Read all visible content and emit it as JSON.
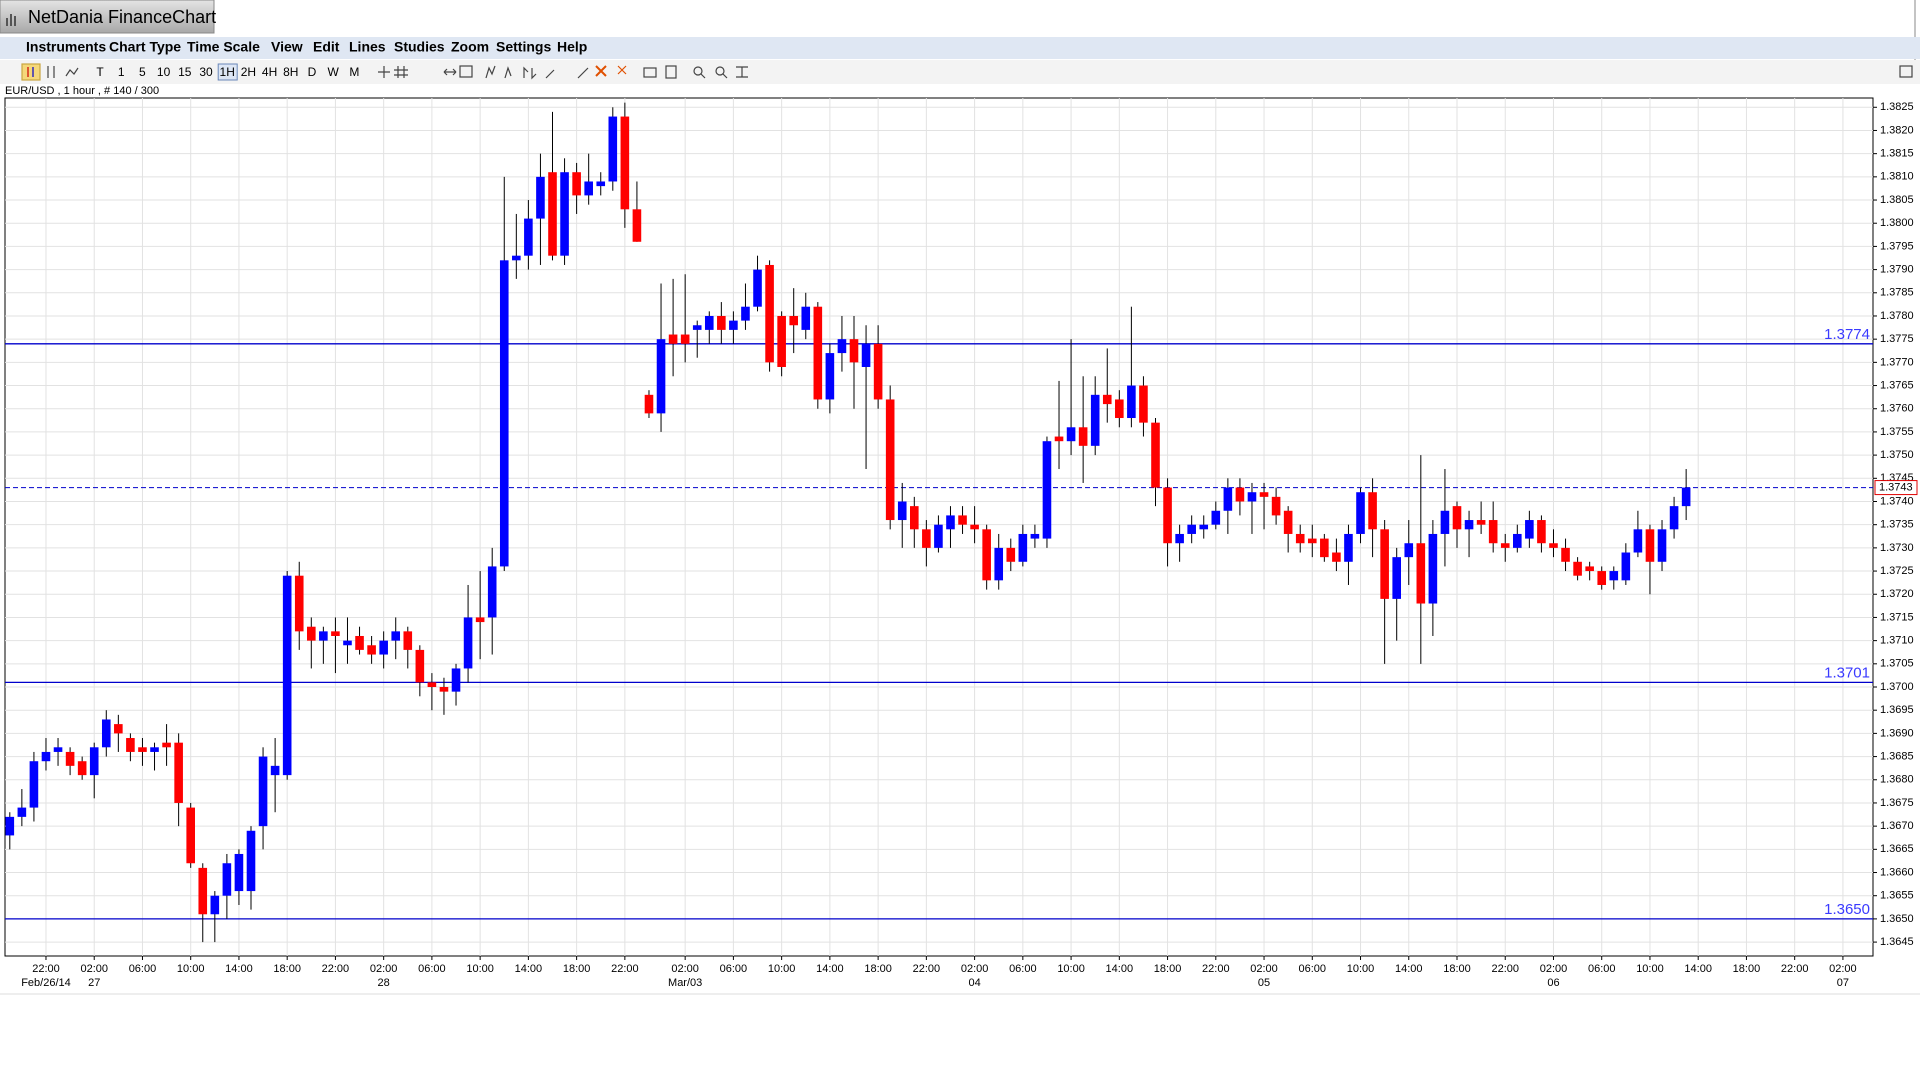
{
  "window": {
    "title": "NetDania FinanceChart"
  },
  "menu": {
    "items": [
      "Instruments",
      "Chart Type",
      "Time Scale",
      "View",
      "Edit",
      "Lines",
      "Studies",
      "Zoom",
      "Settings",
      "Help"
    ]
  },
  "toolbar": {
    "buttons": [
      "T",
      "1",
      "5",
      "10",
      "15",
      "30",
      "1H",
      "2H",
      "4H",
      "8H",
      "D",
      "W",
      "M"
    ]
  },
  "chart_data": {
    "type": "candlestick",
    "label": "EUR/USD , 1 hour , # 140 / 300",
    "up_color": "#0000ff",
    "down_color": "#ff0000",
    "wick_color": "#000000",
    "line_color": "#0000cc",
    "grid": true,
    "ylim": [
      1.3642,
      1.3827
    ],
    "yticks": [
      1.3645,
      {
        "value": 1.365,
        "label": "1.3650"
      },
      1.3655,
      {
        "value": 1.366,
        "label": "1.3660"
      },
      1.3665,
      {
        "value": 1.367,
        "label": "1.3670"
      },
      1.3675,
      {
        "value": 1.368,
        "label": "1.3680"
      },
      1.3685,
      {
        "value": 1.369,
        "label": "1.3690"
      },
      1.3695,
      {
        "value": 1.37,
        "label": "1.3700"
      },
      1.3705,
      {
        "value": 1.371,
        "label": "1.3710"
      },
      1.3715,
      {
        "value": 1.372,
        "label": "1.3720"
      },
      1.3725,
      {
        "value": 1.373,
        "label": "1.3730"
      },
      1.3735,
      {
        "value": 1.374,
        "label": "1.3740"
      },
      1.3745,
      {
        "value": 1.375,
        "label": "1.3750"
      },
      1.3755,
      {
        "value": 1.376,
        "label": "1.3760"
      },
      1.3765,
      {
        "value": 1.377,
        "label": "1.3770"
      },
      1.3775,
      {
        "value": 1.378,
        "label": "1.3780"
      },
      1.3785,
      {
        "value": 1.379,
        "label": "1.3790"
      },
      1.3795,
      {
        "value": 1.38,
        "label": "1.3800"
      },
      1.3805,
      {
        "value": 1.381,
        "label": "1.3810"
      },
      1.3815,
      {
        "value": 1.382,
        "label": "1.3820"
      },
      1.3825
    ],
    "xticks": [
      {
        "value": 3,
        "label": "22:00",
        "date": "Feb/26/14"
      },
      {
        "value": 7,
        "label": "02:00",
        "date": "27"
      },
      {
        "value": 11,
        "label": "06:00"
      },
      {
        "value": 15,
        "label": "10:00"
      },
      {
        "value": 19,
        "label": "14:00"
      },
      {
        "value": 23,
        "label": "18:00"
      },
      {
        "value": 27,
        "label": "22:00"
      },
      {
        "value": 31,
        "label": "02:00",
        "date": "28"
      },
      {
        "value": 35,
        "label": "06:00"
      },
      {
        "value": 39,
        "label": "10:00"
      },
      {
        "value": 43,
        "label": "14:00"
      },
      {
        "value": 47,
        "label": "18:00"
      },
      {
        "value": 51,
        "label": "22:00"
      },
      {
        "value": 56,
        "label": "02:00",
        "date": "Mar/03"
      },
      {
        "value": 60,
        "label": "06:00"
      },
      {
        "value": 64,
        "label": "10:00"
      },
      {
        "value": 68,
        "label": "14:00"
      },
      {
        "value": 72,
        "label": "18:00"
      },
      {
        "value": 76,
        "label": "22:00"
      },
      {
        "value": 80,
        "label": "02:00",
        "date": "04"
      },
      {
        "value": 84,
        "label": "06:00"
      },
      {
        "value": 88,
        "label": "10:00"
      },
      {
        "value": 92,
        "label": "14:00"
      },
      {
        "value": 96,
        "label": "18:00"
      },
      {
        "value": 100,
        "label": "22:00"
      },
      {
        "value": 104,
        "label": "02:00",
        "date": "05"
      },
      {
        "value": 108,
        "label": "06:00"
      },
      {
        "value": 112,
        "label": "10:00"
      },
      {
        "value": 116,
        "label": "14:00"
      },
      {
        "value": 120,
        "label": "18:00"
      },
      {
        "value": 124,
        "label": "22:00"
      },
      {
        "value": 128,
        "label": "02:00",
        "date": "06"
      },
      {
        "value": 132,
        "label": "06:00"
      },
      {
        "value": 136,
        "label": "10:00"
      },
      {
        "value": 140,
        "label": "14:00"
      },
      {
        "value": 144,
        "label": "18:00"
      },
      {
        "value": 148,
        "label": "22:00"
      },
      {
        "value": 152,
        "label": "02:00",
        "date": "07"
      }
    ],
    "hlines": [
      1.3774,
      1.3701,
      {
        "value": 1.365,
        "label": "1.3650"
      }
    ],
    "last": 1.3743,
    "open": [
      1.3668,
      1.3672,
      1.3674,
      1.3684,
      1.3686,
      1.3686,
      1.3684,
      1.3681,
      1.3687,
      1.3692,
      1.3689,
      1.3687,
      1.3686,
      1.3688,
      1.3688,
      1.3674,
      1.3661,
      1.3651,
      1.3655,
      1.3656,
      1.3656,
      1.367,
      1.3681,
      1.3681,
      1.3724,
      1.3713,
      1.371,
      1.3712,
      1.3709,
      1.3711,
      1.3709,
      1.3707,
      1.371,
      1.3712,
      1.3708,
      1.3701,
      1.37,
      1.3699,
      1.3704,
      1.3715,
      1.3715,
      1.3726,
      1.3792,
      1.3793,
      1.3801,
      1.3811,
      1.3793,
      1.3811,
      1.3806,
      1.3808,
      1.3809,
      1.3823,
      1.3803,
      1.3763,
      1.3759,
      1.3776,
      1.3776,
      1.3777,
      1.3777,
      1.378,
      1.3777,
      1.3779,
      1.3782,
      1.3791,
      1.378,
      1.378,
      1.3777,
      1.3782,
      1.3762,
      1.3772,
      1.3775,
      1.3769,
      1.3774,
      1.3762,
      1.3736,
      1.3739,
      1.3734,
      1.373,
      1.3734,
      1.3737,
      1.3735,
      1.3734,
      1.3723,
      1.373,
      1.3727,
      1.3732,
      1.3732,
      1.3754,
      1.3753,
      1.3756,
      1.3752,
      1.3763,
      1.3762,
      1.3758,
      1.3765,
      1.3757,
      1.3743,
      1.3731,
      1.3733,
      1.3734,
      1.3735,
      1.3738,
      1.3743,
      1.374,
      1.3742,
      1.3741,
      1.3738,
      1.3733,
      1.3732,
      1.3732,
      1.3729,
      1.3727,
      1.3733,
      1.3742,
      1.3734,
      1.3719,
      1.3728,
      1.3731,
      1.3718,
      1.3733,
      1.3739,
      1.3734,
      1.3736,
      1.3736,
      1.3731,
      1.373,
      1.3732,
      1.3736,
      1.3731,
      1.373,
      1.3727,
      1.3726,
      1.3725,
      1.3723,
      1.3723,
      1.3729,
      1.3734,
      1.3727,
      1.3734,
      1.3739
    ],
    "high": [
      1.3673,
      1.3678,
      1.3686,
      1.3689,
      1.3689,
      1.3687,
      1.3685,
      1.3688,
      1.3695,
      1.3694,
      1.369,
      1.3689,
      1.3688,
      1.3692,
      1.369,
      1.3675,
      1.3662,
      1.3656,
      1.3664,
      1.3665,
      1.367,
      1.3687,
      1.3689,
      1.3725,
      1.3727,
      1.3715,
      1.3713,
      1.3715,
      1.3715,
      1.3713,
      1.3711,
      1.3712,
      1.3715,
      1.3713,
      1.3709,
      1.3703,
      1.3702,
      1.3705,
      1.3722,
      1.3725,
      1.373,
      1.381,
      1.3802,
      1.3805,
      1.3815,
      1.3824,
      1.3814,
      1.3813,
      1.3815,
      1.3811,
      1.3825,
      1.3826,
      1.3809,
      1.3764,
      1.3787,
      1.3788,
      1.3789,
      1.3779,
      1.3781,
      1.3783,
      1.3781,
      1.3787,
      1.3793,
      1.3792,
      1.3781,
      1.3786,
      1.3785,
      1.3783,
      1.3774,
      1.378,
      1.378,
      1.3778,
      1.3778,
      1.3765,
      1.3744,
      1.3741,
      1.3736,
      1.3737,
      1.3739,
      1.3739,
      1.3739,
      1.3735,
      1.3733,
      1.3732,
      1.3735,
      1.3735,
      1.3754,
      1.3766,
      1.3775,
      1.3767,
      1.3767,
      1.3773,
      1.3764,
      1.3782,
      1.3767,
      1.3758,
      1.3745,
      1.3735,
      1.3737,
      1.3737,
      1.374,
      1.3745,
      1.3745,
      1.3744,
      1.3744,
      1.3743,
      1.3739,
      1.3735,
      1.3735,
      1.3733,
      1.3732,
      1.3735,
      1.3743,
      1.3745,
      1.3736,
      1.373,
      1.3736,
      1.375,
      1.3736,
      1.3747,
      1.374,
      1.3738,
      1.374,
      1.374,
      1.3733,
      1.3735,
      1.3738,
      1.3737,
      1.3734,
      1.3732,
      1.3728,
      1.3727,
      1.3726,
      1.3726,
      1.3731,
      1.3738,
      1.3735,
      1.3736,
      1.3741,
      1.3747
    ],
    "low": [
      1.3665,
      1.367,
      1.3671,
      1.3682,
      1.3683,
      1.3681,
      1.368,
      1.3676,
      1.3685,
      1.3686,
      1.3684,
      1.3683,
      1.3682,
      1.3683,
      1.367,
      1.3661,
      1.3645,
      1.3645,
      1.365,
      1.3653,
      1.3652,
      1.3665,
      1.3673,
      1.368,
      1.3708,
      1.3704,
      1.3705,
      1.3703,
      1.3705,
      1.3707,
      1.3705,
      1.3704,
      1.3706,
      1.3704,
      1.3698,
      1.3695,
      1.3694,
      1.3696,
      1.3701,
      1.3706,
      1.3707,
      1.3725,
      1.3788,
      1.379,
      1.3791,
      1.3792,
      1.3791,
      1.3802,
      1.3804,
      1.3806,
      1.3807,
      1.3799,
      1.3796,
      1.3758,
      1.3755,
      1.3767,
      1.377,
      1.3771,
      1.3774,
      1.3774,
      1.3774,
      1.3777,
      1.3781,
      1.3768,
      1.3767,
      1.3772,
      1.3775,
      1.376,
      1.3759,
      1.3768,
      1.376,
      1.3747,
      1.376,
      1.3734,
      1.373,
      1.373,
      1.3726,
      1.3729,
      1.373,
      1.3733,
      1.3731,
      1.3721,
      1.3721,
      1.3725,
      1.3726,
      1.373,
      1.373,
      1.3747,
      1.375,
      1.3744,
      1.375,
      1.3757,
      1.3756,
      1.3756,
      1.3754,
      1.3739,
      1.3726,
      1.3727,
      1.3731,
      1.3732,
      1.3734,
      1.3733,
      1.3737,
      1.3733,
      1.3734,
      1.3735,
      1.3729,
      1.3729,
      1.3728,
      1.3727,
      1.3725,
      1.3722,
      1.3731,
      1.3728,
      1.3705,
      1.371,
      1.3722,
      1.3705,
      1.3711,
      1.3726,
      1.373,
      1.3728,
      1.3733,
      1.3729,
      1.3727,
      1.3729,
      1.373,
      1.3729,
      1.3728,
      1.3725,
      1.3723,
      1.3723,
      1.3721,
      1.3721,
      1.3722,
      1.3728,
      1.372,
      1.3725,
      1.3732,
      1.3736
    ],
    "close": [
      1.3672,
      1.3674,
      1.3684,
      1.3686,
      1.3687,
      1.3683,
      1.3681,
      1.3687,
      1.3693,
      1.369,
      1.3686,
      1.3686,
      1.3687,
      1.3687,
      1.3675,
      1.3662,
      1.3651,
      1.3655,
      1.3662,
      1.3664,
      1.3669,
      1.3685,
      1.3683,
      1.3724,
      1.3712,
      1.371,
      1.3712,
      1.3711,
      1.371,
      1.3708,
      1.3707,
      1.371,
      1.3712,
      1.3708,
      1.3701,
      1.37,
      1.3699,
      1.3704,
      1.3715,
      1.3714,
      1.3726,
      1.3792,
      1.3793,
      1.3801,
      1.381,
      1.3793,
      1.3811,
      1.3806,
      1.3809,
      1.3809,
      1.3823,
      1.3803,
      1.3796,
      1.3759,
      1.3775,
      1.3774,
      1.3774,
      1.3778,
      1.378,
      1.3777,
      1.3779,
      1.3782,
      1.379,
      1.377,
      1.3769,
      1.3778,
      1.3782,
      1.3762,
      1.3772,
      1.3775,
      1.377,
      1.3774,
      1.3762,
      1.3736,
      1.374,
      1.3734,
      1.373,
      1.3735,
      1.3737,
      1.3735,
      1.3734,
      1.3723,
      1.373,
      1.3727,
      1.3733,
      1.3733,
      1.3753,
      1.3753,
      1.3756,
      1.3752,
      1.3763,
      1.3761,
      1.3758,
      1.3765,
      1.3757,
      1.3743,
      1.3731,
      1.3733,
      1.3735,
      1.3735,
      1.3738,
      1.3743,
      1.374,
      1.3742,
      1.3741,
      1.3737,
      1.3733,
      1.3731,
      1.3731,
      1.3728,
      1.3727,
      1.3733,
      1.3742,
      1.3734,
      1.3719,
      1.3728,
      1.3731,
      1.3718,
      1.3733,
      1.3738,
      1.3734,
      1.3736,
      1.3735,
      1.3731,
      1.373,
      1.3733,
      1.3736,
      1.3731,
      1.373,
      1.3727,
      1.3724,
      1.3725,
      1.3722,
      1.3725,
      1.3729,
      1.3734,
      1.3727,
      1.3734,
      1.3739,
      1.3743
    ]
  }
}
